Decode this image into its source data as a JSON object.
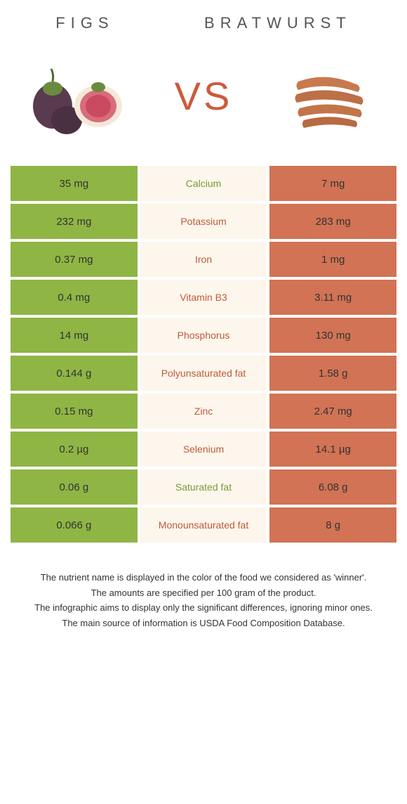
{
  "header": {
    "left_title": "FIGS",
    "right_title": "BRATWURST",
    "vs": "VS"
  },
  "colors": {
    "left_bg": "#8fb545",
    "mid_bg": "#fdf6ec",
    "right_bg": "#d17354",
    "left_text": "#333333",
    "mid_text_left": "#7a9a3a",
    "mid_text_right": "#c05a3a",
    "right_text": "#333333",
    "title_color": "#555555",
    "vs_color": "#cb5b3c"
  },
  "table": {
    "rows": [
      {
        "left": "35 mg",
        "mid": "Calcium",
        "right": "7 mg",
        "winner": "left"
      },
      {
        "left": "232 mg",
        "mid": "Potassium",
        "right": "283 mg",
        "winner": "right"
      },
      {
        "left": "0.37 mg",
        "mid": "Iron",
        "right": "1 mg",
        "winner": "right"
      },
      {
        "left": "0.4 mg",
        "mid": "Vitamin B3",
        "right": "3.11 mg",
        "winner": "right"
      },
      {
        "left": "14 mg",
        "mid": "Phosphorus",
        "right": "130 mg",
        "winner": "right"
      },
      {
        "left": "0.144 g",
        "mid": "Polyunsaturated fat",
        "right": "1.58 g",
        "winner": "right"
      },
      {
        "left": "0.15 mg",
        "mid": "Zinc",
        "right": "2.47 mg",
        "winner": "right"
      },
      {
        "left": "0.2 µg",
        "mid": "Selenium",
        "right": "14.1 µg",
        "winner": "right"
      },
      {
        "left": "0.06 g",
        "mid": "Saturated fat",
        "right": "6.08 g",
        "winner": "left"
      },
      {
        "left": "0.066 g",
        "mid": "Monounsaturated fat",
        "right": "8 g",
        "winner": "right"
      }
    ]
  },
  "footnotes": [
    "The nutrient name is displayed in the color of the food we considered as 'winner'.",
    "The amounts are specified per 100 gram of the product.",
    "The infographic aims to display only the significant differences, ignoring minor ones.",
    "The main source of information is USDA Food Composition Database."
  ]
}
